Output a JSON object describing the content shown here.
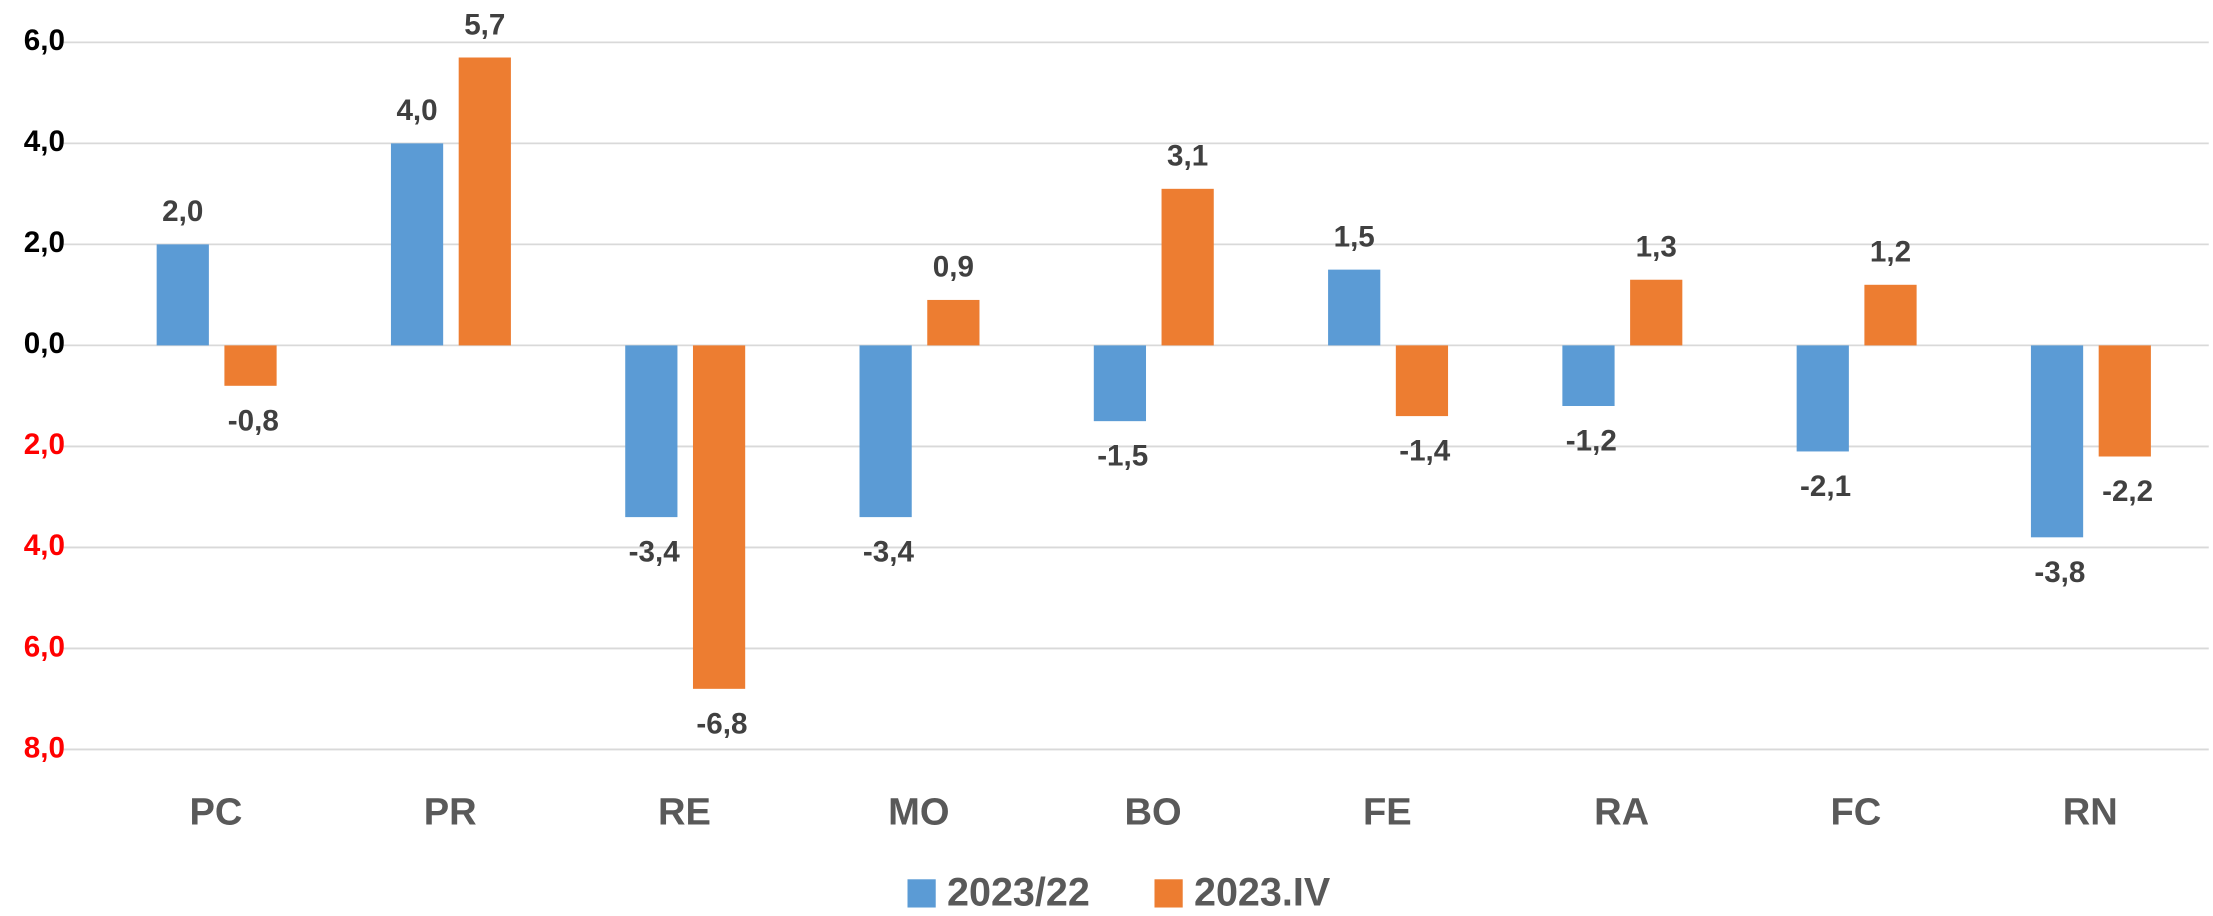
{
  "chart_data": {
    "type": "bar",
    "categories": [
      "PC",
      "PR",
      "RE",
      "MO",
      "BO",
      "FE",
      "RA",
      "FC",
      "RN"
    ],
    "series": [
      {
        "name": "2023/22",
        "color": "#5b9bd5",
        "values": [
          2.0,
          4.0,
          -3.4,
          -3.4,
          -1.5,
          1.5,
          -1.2,
          -2.1,
          -3.8
        ],
        "value_labels": [
          "2,0",
          "4,0",
          "-3,4",
          "-3,4",
          "-1,5",
          "1,5",
          "-1,2",
          "-2,1",
          "-3,8"
        ]
      },
      {
        "name": "2023.IV",
        "color": "#ed7d31",
        "values": [
          -0.8,
          5.7,
          -6.8,
          0.9,
          3.1,
          -1.4,
          1.3,
          1.2,
          -2.2
        ],
        "value_labels": [
          "-0,8",
          "5,7",
          "-6,8",
          "0,9",
          "3,1",
          "-1,4",
          "1,3",
          "1,2",
          "-2,2"
        ]
      }
    ],
    "ylim": [
      -8,
      6
    ],
    "yticks": [
      {
        "value": 6,
        "label": "6,0"
      },
      {
        "value": 4,
        "label": "4,0"
      },
      {
        "value": 2,
        "label": "2,0"
      },
      {
        "value": 0,
        "label": "0,0"
      },
      {
        "value": -2,
        "label": "2,0"
      },
      {
        "value": -4,
        "label": "4,0"
      },
      {
        "value": -6,
        "label": "6,0"
      },
      {
        "value": -8,
        "label": "8,0"
      }
    ],
    "negative_tick_color": "#ff0000",
    "grid": true,
    "legend": "bottom"
  }
}
